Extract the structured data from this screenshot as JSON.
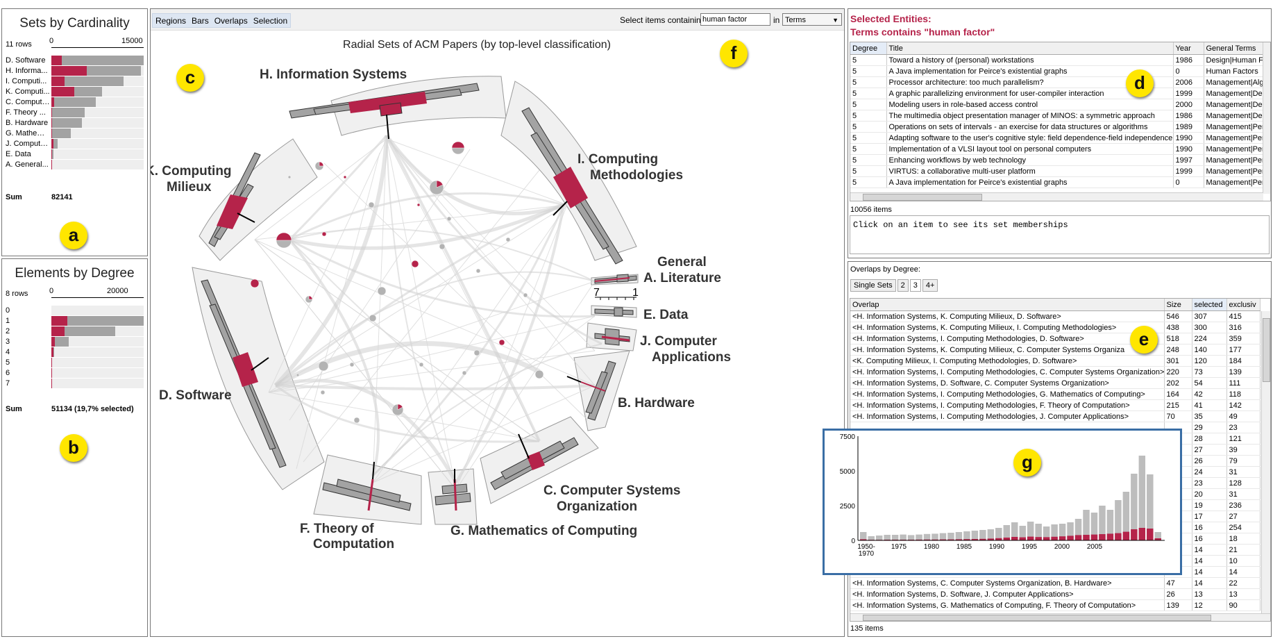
{
  "panel_a": {
    "title": "Sets by Cardinality",
    "rows_label": "11 rows",
    "axis_min": "0",
    "axis_max": "15000",
    "rows": [
      {
        "label": "D. Software",
        "gray": 1.0,
        "red": 0.11
      },
      {
        "label": "H. Informa...",
        "gray": 0.97,
        "red": 0.38
      },
      {
        "label": "I. Computi...",
        "gray": 0.78,
        "red": 0.14
      },
      {
        "label": "K. Computi...",
        "gray": 0.55,
        "red": 0.25
      },
      {
        "label": "C. Compute...",
        "gray": 0.48,
        "red": 0.03
      },
      {
        "label": "F. Theory ...",
        "gray": 0.36,
        "red": 0.01
      },
      {
        "label": "B. Hardware",
        "gray": 0.33,
        "red": 0.01
      },
      {
        "label": "G. Mathema...",
        "gray": 0.21,
        "red": 0.01
      },
      {
        "label": "J. Compute...",
        "gray": 0.07,
        "red": 0.02
      },
      {
        "label": "E. Data",
        "gray": 0.02,
        "red": 0.01
      },
      {
        "label": "A. General...",
        "gray": 0.01,
        "red": 0.01
      }
    ],
    "sum_label": "Sum",
    "sum_value": "82141",
    "marker": "a"
  },
  "panel_b": {
    "title": "Elements by Degree",
    "rows_label": "8 rows",
    "axis_min": "0",
    "axis_max": "20000",
    "rows": [
      {
        "label": "0",
        "gray": 0.0,
        "red": 0.0
      },
      {
        "label": "1",
        "gray": 1.0,
        "red": 0.17
      },
      {
        "label": "2",
        "gray": 0.69,
        "red": 0.14
      },
      {
        "label": "3",
        "gray": 0.19,
        "red": 0.04
      },
      {
        "label": "4",
        "gray": 0.03,
        "red": 0.02
      },
      {
        "label": "5",
        "gray": 0.01,
        "red": 0.01
      },
      {
        "label": "6",
        "gray": 0.005,
        "red": 0.005
      },
      {
        "label": "7",
        "gray": 0.003,
        "red": 0.003
      }
    ],
    "sum_label": "Sum",
    "sum_value": "51134 (19,7% selected)",
    "marker": "b"
  },
  "toolbar": {
    "menu": [
      "Regions",
      "Bars",
      "Overlaps",
      "Selection"
    ],
    "select_label": "Select items containing",
    "search_value": "human factor",
    "in_label": "in",
    "field_value": "Terms"
  },
  "main": {
    "title": "Radial Sets of ACM Papers (by top-level classification)",
    "marker_c": "c",
    "marker_f": "f",
    "sectors": [
      {
        "line1": "H. Information Systems",
        "line2": ""
      },
      {
        "line1": "I. Computing",
        "line2": "Methodologies"
      },
      {
        "line1": "General",
        "line2": "A. Literature"
      },
      {
        "line1": "E. Data",
        "line2": ""
      },
      {
        "line1": "J. Computer",
        "line2": "Applications"
      },
      {
        "line1": "B. Hardware",
        "line2": ""
      },
      {
        "line1": "C. Computer Systems",
        "line2": "Organization"
      },
      {
        "line1": "G. Mathematics of Computing",
        "line2": ""
      },
      {
        "line1": "F. Theory of",
        "line2": "Computation"
      },
      {
        "line1": "D. Software",
        "line2": ""
      },
      {
        "line1": "K. Computing",
        "line2": "Milieux"
      }
    ],
    "degree_legend_left": "7",
    "degree_legend_right": "1"
  },
  "selected_entities": {
    "heading1": "Selected Entities:",
    "heading2": "Terms contains \"human factor\"",
    "columns": [
      "Degree",
      "Title",
      "Year",
      "General Terms"
    ],
    "rows": [
      [
        "5",
        "Toward a history of (personal) workstations",
        "1986",
        "Design|Human Fa"
      ],
      [
        "5",
        "A Java implementation for Peirce's existential graphs",
        "0",
        "Human Factors"
      ],
      [
        "5",
        "Processor architecture: too much parallelism?",
        "2006",
        "Management|Alg"
      ],
      [
        "5",
        "A graphic parallelizing environment for user-compiler interaction",
        "1999",
        "Management|Des"
      ],
      [
        "5",
        "Modeling users in role-based access control",
        "2000",
        "Management|Des"
      ],
      [
        "5",
        "The multimedia object presentation manager of MINOS: a symmetric approach",
        "1986",
        "Management|Des"
      ],
      [
        "5",
        "Operations on sets of intervals - an exercise for data structures or algorithms",
        "1989",
        "Management|Per"
      ],
      [
        "5",
        "Adapting software to the user's cognitive style: field dependence-field independence",
        "1990",
        "Management|Per"
      ],
      [
        "5",
        "Implementation of a VLSI layout tool on personal computers",
        "1990",
        "Management|Per"
      ],
      [
        "5",
        "Enhancing workflows by web technology",
        "1997",
        "Management|Per"
      ],
      [
        "5",
        "VIRTUS: a collaborative multi-user platform",
        "1999",
        "Management|Per"
      ],
      [
        "5",
        "A Java implementation for Peirce's existential graphs",
        "0",
        "Management|Per"
      ]
    ],
    "count": "10056 items",
    "info_text": "Click on an item to see its set memberships",
    "marker": "d"
  },
  "overlaps": {
    "label": "Overlaps by Degree:",
    "tabs": [
      "Single Sets",
      "2",
      "3",
      "4+"
    ],
    "active_tab": "3",
    "columns": [
      "Overlap",
      "Size",
      "selected",
      "exclusiv"
    ],
    "rows": [
      [
        "<H. Information Systems, K. Computing Milieux, D. Software>",
        "546",
        "307",
        "415"
      ],
      [
        "<H. Information Systems, K. Computing Milieux, I. Computing Methodologies>",
        "438",
        "300",
        "316"
      ],
      [
        "<H. Information Systems, I. Computing Methodologies, D. Software>",
        "518",
        "224",
        "359"
      ],
      [
        "<H. Information Systems, K. Computing Milieux, C. Computer Systems Organiza",
        "248",
        "140",
        "177"
      ],
      [
        "<K. Computing Milieux, I. Computing Methodologies, D. Software>",
        "301",
        "120",
        "184"
      ],
      [
        "<H. Information Systems, I. Computing Methodologies, C. Computer Systems Organization>",
        "220",
        "73",
        "139"
      ],
      [
        "<H. Information Systems, D. Software, C. Computer Systems Organization>",
        "202",
        "54",
        "111"
      ],
      [
        "<H. Information Systems, I. Computing Methodologies, G. Mathematics of Computing>",
        "164",
        "42",
        "118"
      ],
      [
        "<H. Information Systems, I. Computing Methodologies, F. Theory of Computation>",
        "215",
        "41",
        "142"
      ],
      [
        "<H. Information Systems, I. Computing Methodologies, J. Computer Applications>",
        "70",
        "35",
        "49"
      ],
      [
        "",
        "",
        "29",
        "23"
      ],
      [
        "",
        "",
        "28",
        "121"
      ],
      [
        "",
        "",
        "27",
        "39"
      ],
      [
        "",
        "",
        "26",
        "79"
      ],
      [
        "",
        "",
        "24",
        "31"
      ],
      [
        "",
        "",
        "23",
        "128"
      ],
      [
        "",
        "",
        "20",
        "31"
      ],
      [
        "",
        "",
        "19",
        "236"
      ],
      [
        "",
        "",
        "17",
        "27"
      ],
      [
        "",
        "",
        "16",
        "254"
      ],
      [
        "",
        "",
        "16",
        "18"
      ],
      [
        "",
        "",
        "14",
        "21"
      ],
      [
        "",
        "",
        "14",
        "10"
      ],
      [
        "",
        "",
        "14",
        "14"
      ],
      [
        "<H. Information Systems, C. Computer Systems Organization, B. Hardware>",
        "47",
        "14",
        "22"
      ],
      [
        "<H. Information Systems, D. Software, J. Computer Applications>",
        "26",
        "13",
        "13"
      ],
      [
        "<H. Information Systems, G. Mathematics of Computing, F. Theory of Computation>",
        "139",
        "12",
        "90"
      ]
    ],
    "count": "135 items",
    "marker": "e"
  },
  "histogram": {
    "marker": "g",
    "y_ticks": [
      "7500",
      "5000",
      "2500",
      "0"
    ],
    "x_ticks": [
      "1950-\n1970",
      "1975",
      "1980",
      "1985",
      "1990",
      "1995",
      "2000",
      "2005"
    ],
    "x_tick_first_line1": "1950-",
    "x_tick_first_line2": "1970",
    "gray": [
      600,
      300,
      350,
      400,
      400,
      420,
      380,
      420,
      460,
      480,
      520,
      550,
      600,
      650,
      700,
      750,
      800,
      900,
      1100,
      1300,
      1050,
      1350,
      1200,
      1000,
      1150,
      1200,
      1300,
      1550,
      2200,
      2000,
      2500,
      2200,
      2900,
      3500,
      4800,
      6100,
      4750,
      600
    ],
    "red": [
      80,
      40,
      40,
      50,
      50,
      50,
      50,
      55,
      60,
      60,
      70,
      70,
      80,
      90,
      100,
      110,
      130,
      160,
      200,
      250,
      220,
      270,
      240,
      230,
      260,
      290,
      330,
      380,
      400,
      420,
      450,
      480,
      520,
      620,
      800,
      900,
      850,
      150
    ]
  }
}
